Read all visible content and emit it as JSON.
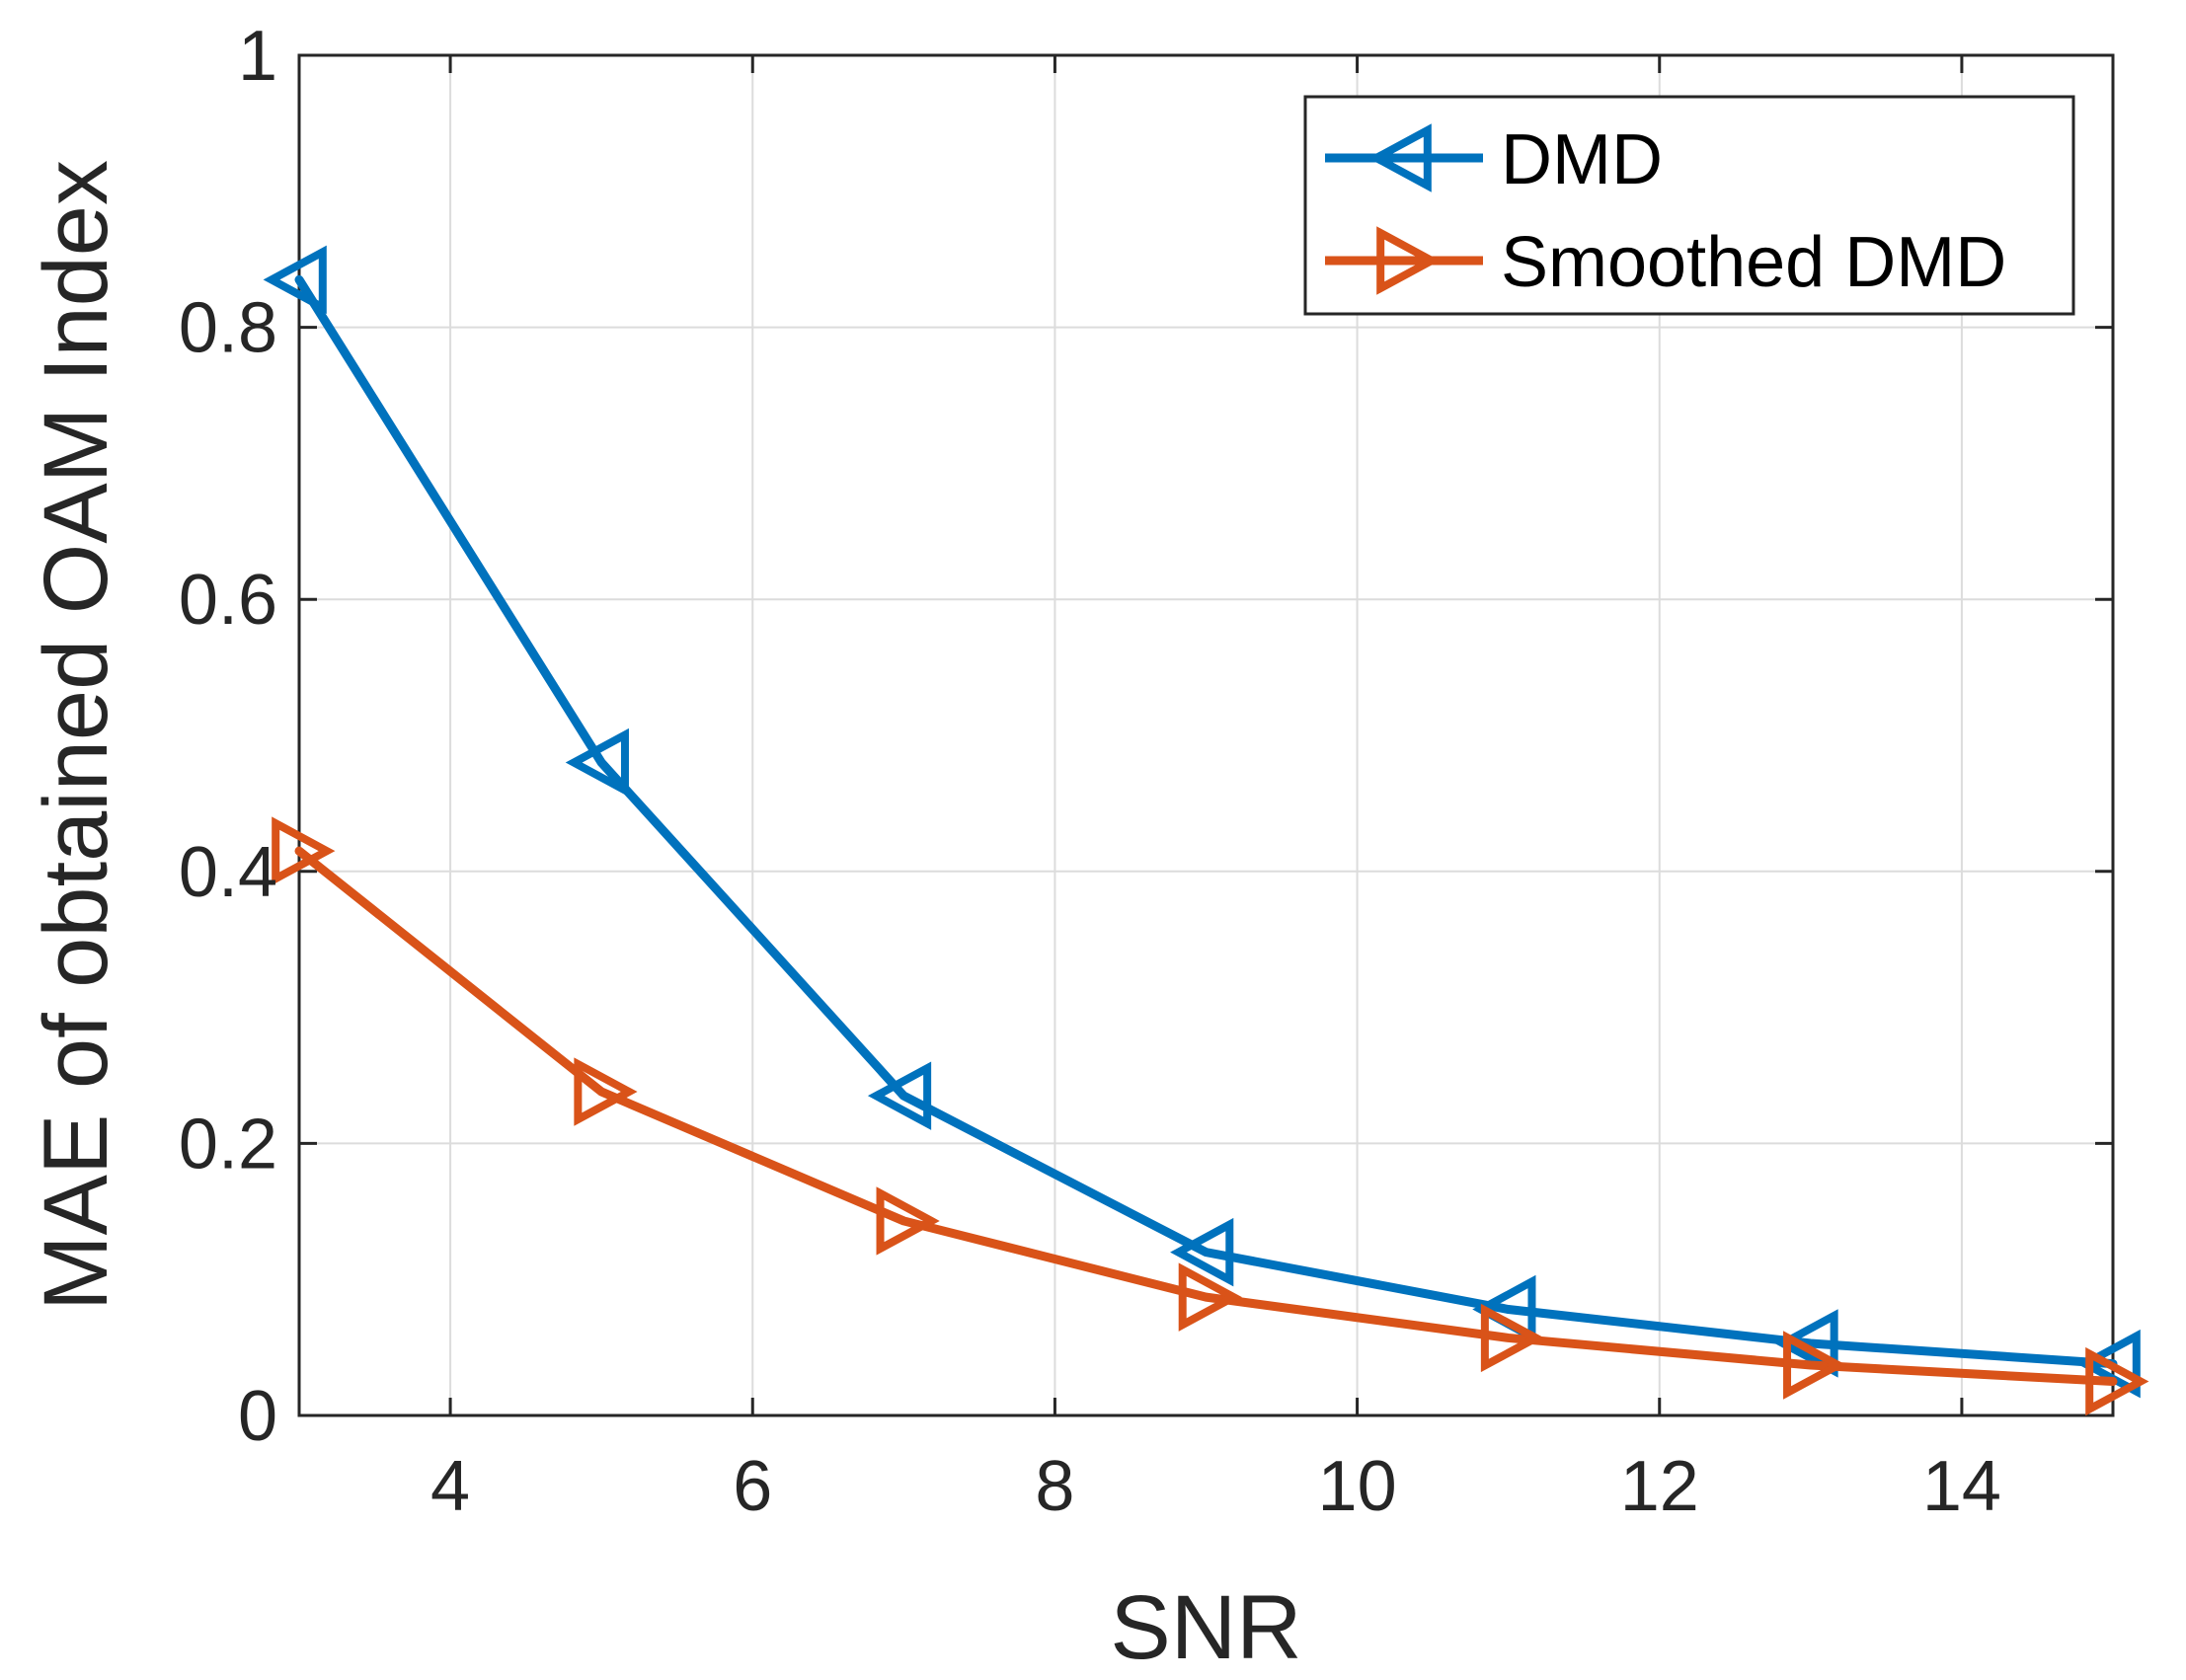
{
  "chart_data": {
    "type": "line",
    "title": "",
    "xlabel": "SNR",
    "ylabel": "MAE of obtained OAM Index",
    "xlim": [
      3,
      15
    ],
    "ylim": [
      0,
      1
    ],
    "xticks": [
      4,
      6,
      8,
      10,
      12,
      14
    ],
    "yticks": [
      0,
      0.2,
      0.4,
      0.6,
      0.8,
      1
    ],
    "xtick_labels": [
      "4",
      "6",
      "8",
      "10",
      "12",
      "14"
    ],
    "ytick_labels": [
      "0",
      "0.2",
      "0.4",
      "0.6",
      "0.8",
      "1"
    ],
    "grid": true,
    "legend_position": "top-right",
    "x": [
      3,
      5,
      7,
      9,
      11,
      13,
      15
    ],
    "series": [
      {
        "name": "DMD",
        "color": "#0072BD",
        "marker": "triangle-left",
        "values": [
          0.835,
          0.48,
          0.235,
          0.12,
          0.078,
          0.053,
          0.038
        ]
      },
      {
        "name": "Smoothed DMD",
        "color": "#D95319",
        "marker": "triangle-right",
        "values": [
          0.415,
          0.238,
          0.143,
          0.087,
          0.057,
          0.037,
          0.025
        ]
      }
    ]
  }
}
